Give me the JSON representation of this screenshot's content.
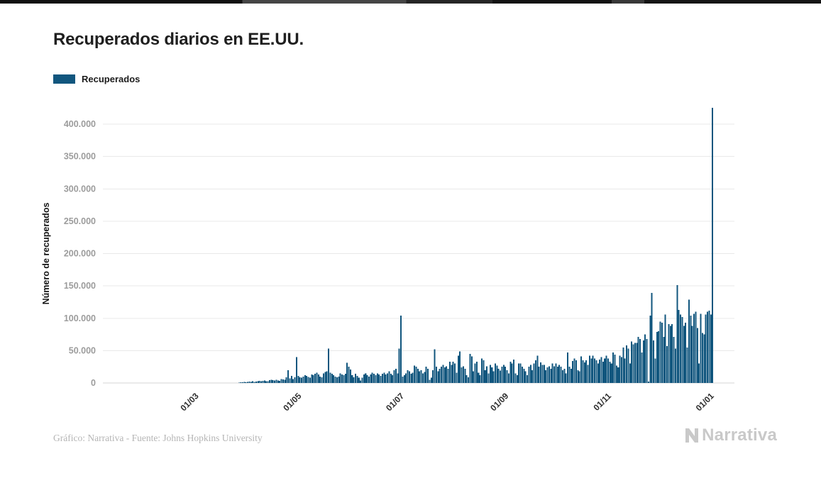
{
  "page": {
    "title": "Recuperados diarios en EE.UU.",
    "footer_credit": "Gráfico: Narrativa - Fuente: Johns Hopkins University",
    "brand_name": "Narrativa"
  },
  "legend": {
    "label": "Recuperados",
    "color": "#11567E"
  },
  "colors": {
    "bar": "#11567E",
    "title_text": "#1f1f1f",
    "y_tick_text": "#9c9c9c",
    "x_tick_text": "#2f2f2f",
    "axis_title_text": "#141414",
    "gridline": "#e9e9e9",
    "axis_line": "#d6d6d6",
    "footer_text": "#b5b5b5",
    "brand_gray": "#c9c9c9"
  },
  "chart_data": {
    "type": "bar",
    "title": "Recuperados diarios en EE.UU.",
    "series_name": "Recuperados",
    "xlabel": "",
    "ylabel": "Número de recuperados",
    "grid": true,
    "legend_position": "top-left",
    "bar_color": "#11567E",
    "ylim": [
      0,
      400000
    ],
    "y_ticks": [
      0,
      50000,
      100000,
      150000,
      200000,
      250000,
      300000,
      350000,
      400000
    ],
    "y_tick_labels": [
      "0",
      "50.000",
      "100.000",
      "150.000",
      "200.000",
      "250.000",
      "300.000",
      "350.000",
      "400.000"
    ],
    "x_axis_start": "2020-01-06",
    "x_axis_end": "2021-01-15",
    "x_ticks": [
      {
        "label": "01/03",
        "date": "2020-03-01"
      },
      {
        "label": "01/05",
        "date": "2020-05-01"
      },
      {
        "label": "01/07",
        "date": "2020-07-01"
      },
      {
        "label": "01/09",
        "date": "2020-09-01"
      },
      {
        "label": "01/11",
        "date": "2020-11-01"
      },
      {
        "label": "01/01",
        "date": "2021-01-01"
      }
    ],
    "series_start_date": "2020-03-27",
    "values": [
      800,
      1100,
      900,
      1400,
      1200,
      1500,
      2000,
      1800,
      2500,
      1700,
      2200,
      3000,
      3500,
      2800,
      3200,
      4000,
      3000,
      2600,
      4200,
      5000,
      4500,
      3800,
      5200,
      4000,
      3500,
      6000,
      5500,
      4800,
      9000,
      20000,
      7000,
      11000,
      6000,
      9000,
      40000,
      11000,
      9000,
      8000,
      10000,
      12000,
      11000,
      9500,
      8000,
      13000,
      12000,
      14000,
      16000,
      13000,
      10000,
      9000,
      15000,
      17000,
      18000,
      53000,
      16000,
      14000,
      12000,
      10000,
      9000,
      10000,
      15000,
      13000,
      12000,
      14000,
      31000,
      25000,
      21000,
      12000,
      9000,
      14000,
      11000,
      8000,
      4000,
      8000,
      13000,
      15000,
      12000,
      10000,
      13000,
      16000,
      14000,
      12000,
      15000,
      13000,
      11000,
      14000,
      16000,
      13000,
      15000,
      18000,
      14000,
      12000,
      20000,
      22000,
      15000,
      53000,
      104000,
      10000,
      12000,
      15000,
      20000,
      18000,
      14000,
      16000,
      27000,
      25000,
      22000,
      18000,
      20000,
      15000,
      17000,
      25000,
      22000,
      5000,
      8000,
      20000,
      52000,
      25000,
      18000,
      22000,
      25000,
      28000,
      24000,
      26000,
      22000,
      33000,
      28000,
      33000,
      30000,
      16000,
      42000,
      49000,
      24000,
      26000,
      22000,
      12000,
      9000,
      45000,
      41000,
      18000,
      30000,
      33000,
      16000,
      12000,
      38000,
      35000,
      20000,
      26000,
      15000,
      28000,
      24000,
      18000,
      30000,
      27000,
      22000,
      19000,
      25000,
      28000,
      25000,
      20000,
      15000,
      33000,
      30000,
      36000,
      15000,
      12000,
      30000,
      30000,
      25000,
      22000,
      18000,
      12000,
      25000,
      28000,
      20000,
      30000,
      35000,
      42000,
      25000,
      32000,
      28000,
      28000,
      20000,
      24000,
      26000,
      22000,
      30000,
      26000,
      30000,
      25000,
      28000,
      25000,
      20000,
      22000,
      15000,
      47000,
      25000,
      22000,
      34000,
      38000,
      35000,
      20000,
      18000,
      41000,
      35000,
      32000,
      35000,
      28000,
      42000,
      38000,
      42000,
      38000,
      35000,
      30000,
      36000,
      40000,
      33000,
      38000,
      42000,
      38000,
      33000,
      30000,
      47000,
      44000,
      27000,
      24000,
      42000,
      40000,
      55000,
      38000,
      58000,
      53000,
      30000,
      64000,
      60000,
      62000,
      62000,
      71000,
      68000,
      47000,
      66000,
      75000,
      68000,
      2000,
      104000,
      139000,
      66000,
      38000,
      79000,
      80000,
      95000,
      93000,
      71000,
      106000,
      57000,
      91000,
      88000,
      91000,
      71000,
      53000,
      151000,
      113000,
      106000,
      102000,
      88000,
      93000,
      55000,
      129000,
      104000,
      88000,
      107000,
      110000,
      85000,
      30000,
      107000,
      77000,
      75000,
      106000,
      110000,
      112000,
      106000,
      425000
    ]
  }
}
